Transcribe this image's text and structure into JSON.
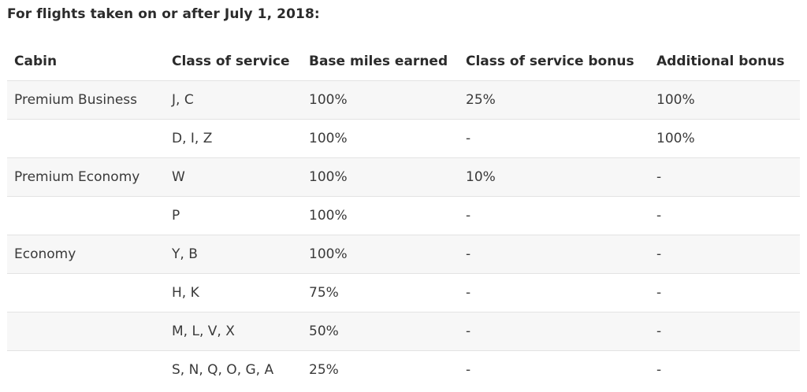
{
  "heading": "For flights taken on or after July 1, 2018:",
  "table": {
    "headers": [
      "Cabin",
      "Class of service",
      "Base miles earned",
      "Class of service bonus",
      "Additional bonus"
    ],
    "rows": [
      [
        "Premium Business",
        "J, C",
        "100%",
        "25%",
        "100%"
      ],
      [
        "",
        "D, I, Z",
        "100%",
        "-",
        "100%"
      ],
      [
        "Premium Economy",
        "W",
        "100%",
        "10%",
        "-"
      ],
      [
        "",
        "P",
        "100%",
        "-",
        "-"
      ],
      [
        "Economy",
        "Y, B",
        "100%",
        "-",
        "-"
      ],
      [
        "",
        "H, K",
        "75%",
        "-",
        "-"
      ],
      [
        "",
        "M, L, V, X",
        "50%",
        "-",
        "-"
      ],
      [
        "",
        "S, N, Q, O, G, A",
        "25%",
        "-",
        "-"
      ]
    ]
  }
}
